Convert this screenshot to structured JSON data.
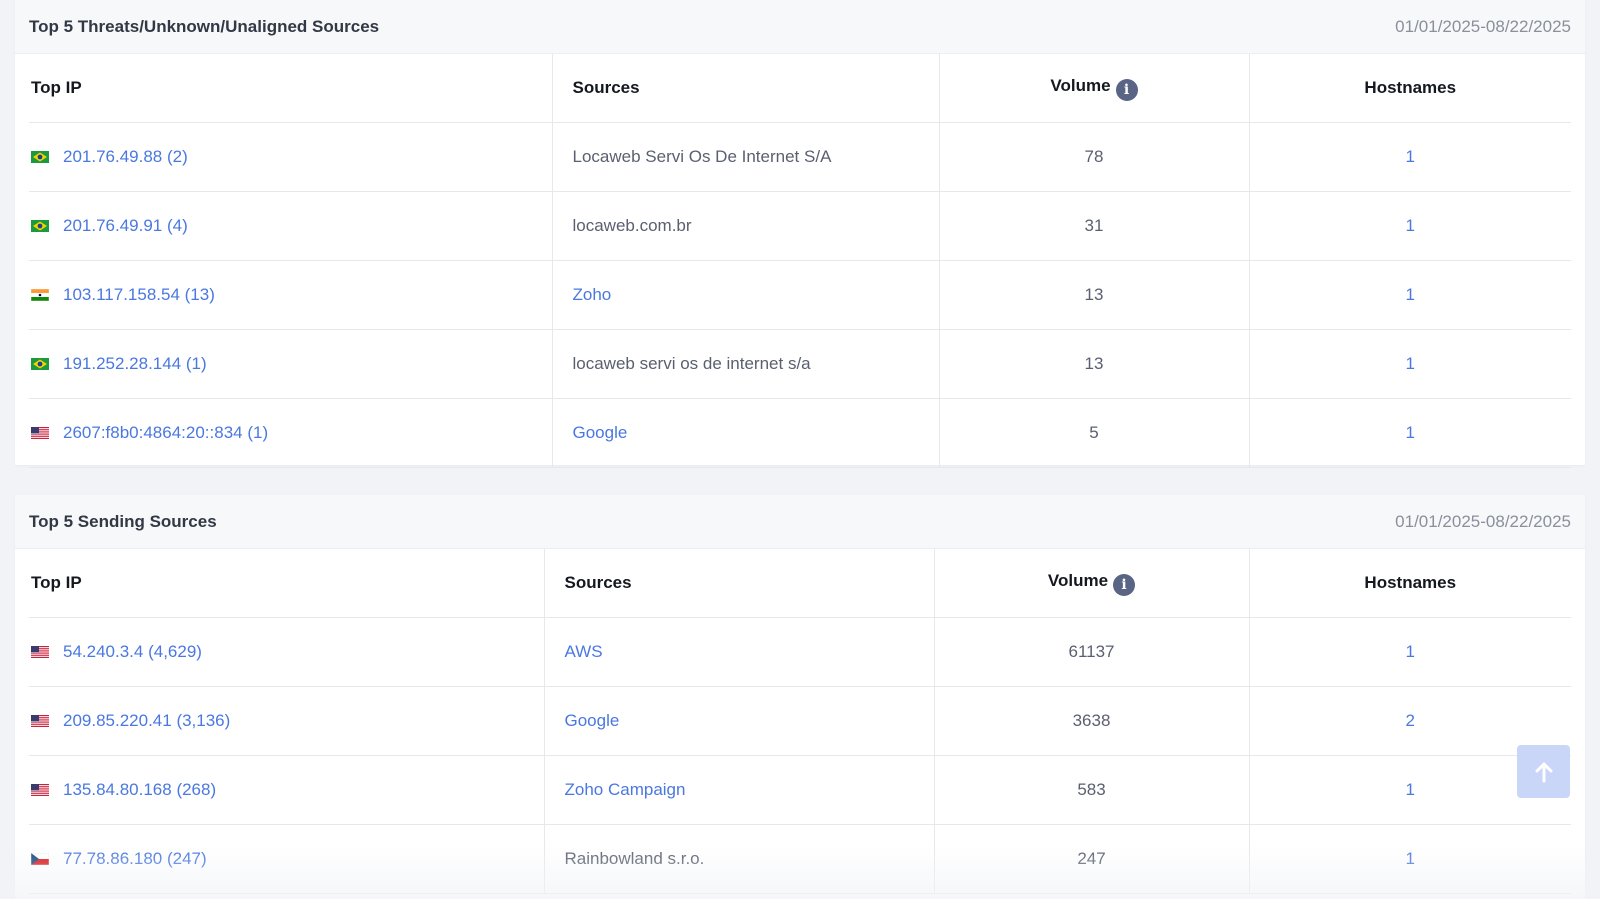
{
  "threats": {
    "title": "Top 5 Threats/Unknown/Unaligned Sources",
    "date_range": "01/01/2025-08/22/2025",
    "columns": {
      "ip": "Top IP",
      "sources": "Sources",
      "volume": "Volume",
      "hostnames": "Hostnames"
    },
    "rows": [
      {
        "flag": "br",
        "ip": "201.76.49.88 (2)",
        "source": "Locaweb Servi Os De Internet S/A",
        "source_link": false,
        "volume": "78",
        "hostnames": "1"
      },
      {
        "flag": "br",
        "ip": "201.76.49.91 (4)",
        "source": "locaweb.com.br",
        "source_link": false,
        "volume": "31",
        "hostnames": "1"
      },
      {
        "flag": "in",
        "ip": "103.117.158.54 (13)",
        "source": "Zoho",
        "source_link": true,
        "volume": "13",
        "hostnames": "1"
      },
      {
        "flag": "br",
        "ip": "191.252.28.144 (1)",
        "source": "locaweb servi os de internet s/a",
        "source_link": false,
        "volume": "13",
        "hostnames": "1"
      },
      {
        "flag": "us",
        "ip": "2607:f8b0:4864:20::834 (1)",
        "source": "Google",
        "source_link": true,
        "volume": "5",
        "hostnames": "1"
      }
    ]
  },
  "sending": {
    "title": "Top 5 Sending Sources",
    "date_range": "01/01/2025-08/22/2025",
    "columns": {
      "ip": "Top IP",
      "sources": "Sources",
      "volume": "Volume",
      "hostnames": "Hostnames"
    },
    "rows": [
      {
        "flag": "us",
        "ip": "54.240.3.4 (4,629)",
        "source": "AWS",
        "source_link": true,
        "volume": "61137",
        "hostnames": "1"
      },
      {
        "flag": "us",
        "ip": "209.85.220.41 (3,136)",
        "source": "Google",
        "source_link": true,
        "volume": "3638",
        "hostnames": "2"
      },
      {
        "flag": "us",
        "ip": "135.84.80.168 (268)",
        "source": "Zoho Campaign",
        "source_link": true,
        "volume": "583",
        "hostnames": "1"
      },
      {
        "flag": "cz",
        "ip": "77.78.86.180 (247)",
        "source": "Rainbowland s.r.o.",
        "source_link": false,
        "volume": "247",
        "hostnames": "1"
      }
    ]
  },
  "icons": {
    "info": "info-icon",
    "scroll_top": "arrow-up-icon"
  },
  "colors": {
    "link": "#4a78e0",
    "info_icon": "#5a6484",
    "scroll_button": "#c9d6f7"
  }
}
